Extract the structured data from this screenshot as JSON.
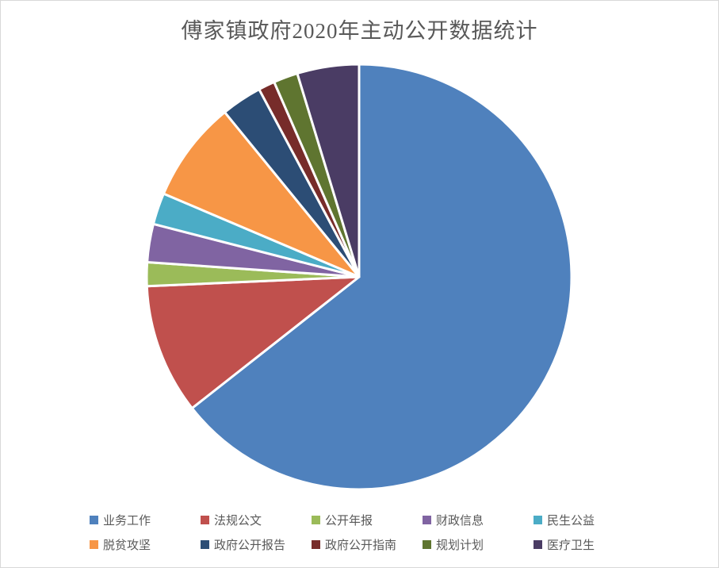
{
  "page": {
    "background_color": "#ffffff",
    "border_color": "#d9d9d9"
  },
  "chart_data": {
    "type": "pie",
    "title": "傅家镇政府2020年主动公开数据统计",
    "title_color": "#595959",
    "legend_text_color": "#595959",
    "legend_position": "bottom",
    "direction": "clockwise",
    "start_angle_deg": 0,
    "slice_border_color": "#ffffff",
    "categories": [
      "业务工作",
      "法规公文",
      "公开年报",
      "财政信息",
      "民生公益",
      "脱贫攻坚",
      "政府公开报告",
      "政府公开指南",
      "规划计划",
      "医疗卫生"
    ],
    "values": [
      64.4,
      9.9,
      1.8,
      2.9,
      2.4,
      7.7,
      3.1,
      1.25,
      1.85,
      4.7
    ],
    "unit": "percent",
    "colors": [
      "#4F81BD",
      "#C0504D",
      "#9BBB59",
      "#8064A2",
      "#4BACC6",
      "#F79646",
      "#2C4D75",
      "#772C2A",
      "#5F7530",
      "#4A3C64"
    ]
  }
}
